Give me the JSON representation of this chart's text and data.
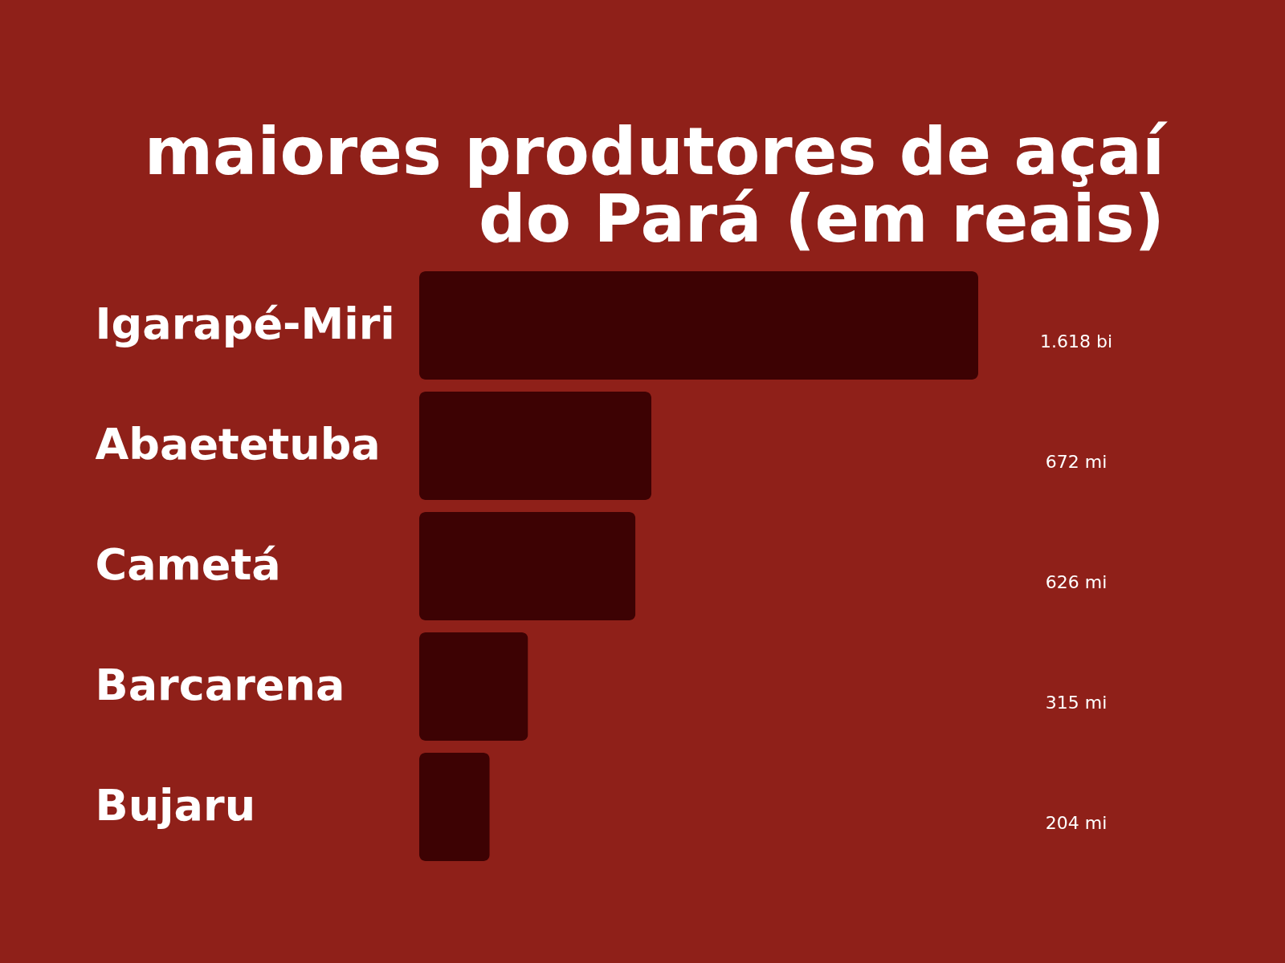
{
  "chart_data": {
    "type": "bar",
    "orientation": "horizontal",
    "title": [
      "maiores produtores de açaí",
      "do Pará (em reais)"
    ],
    "categories": [
      "Igarapé-Miri",
      "Abaetetuba",
      "Cametá",
      "Barcarena",
      "Bujaru"
    ],
    "values": [
      1618,
      672,
      626,
      315,
      204
    ],
    "value_labels": [
      "1.618 bi",
      "672 mi",
      "626 mi",
      "315 mi",
      "204 mi"
    ],
    "color": "#3d0203"
  }
}
